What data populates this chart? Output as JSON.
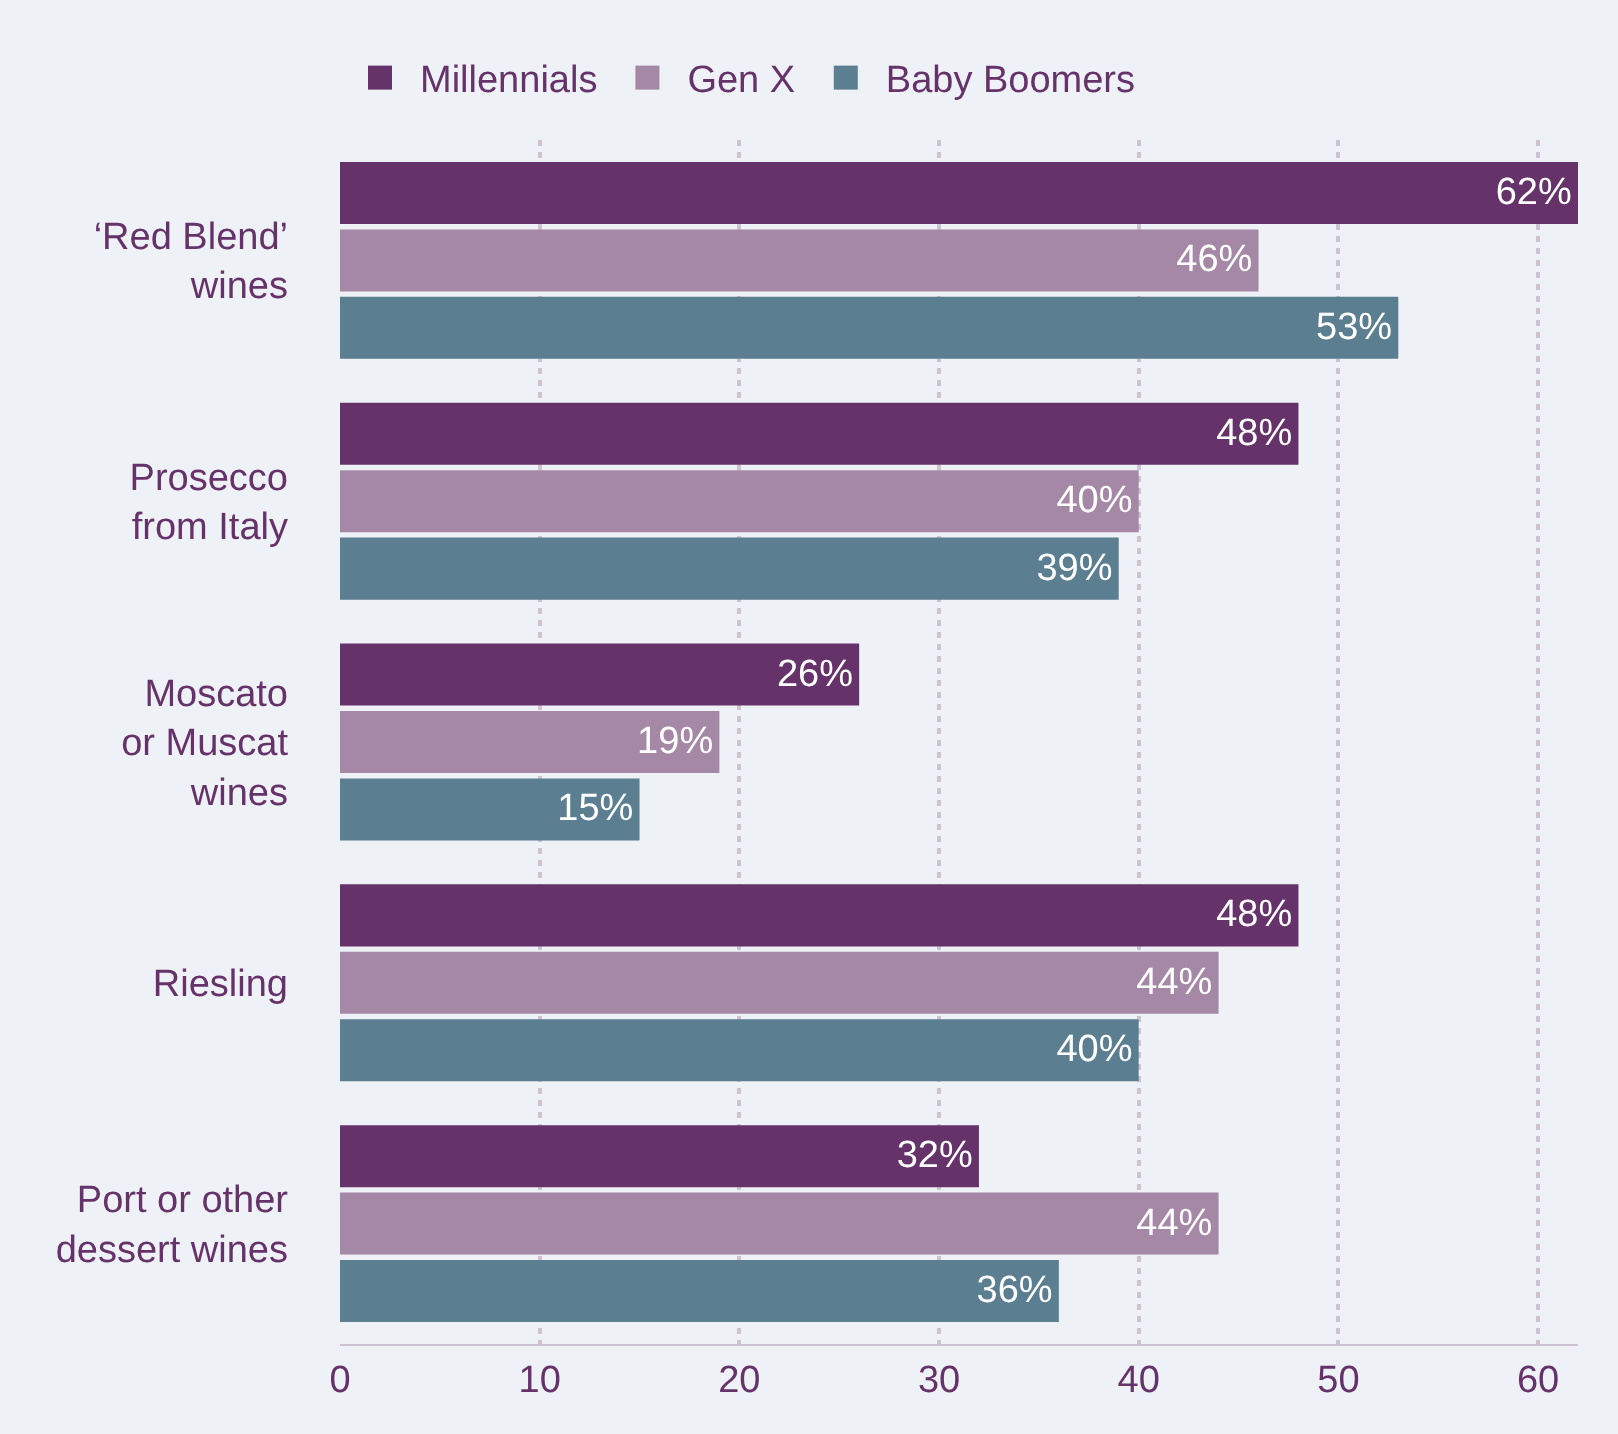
{
  "chart_data": {
    "type": "bar",
    "orientation": "horizontal",
    "categories": [
      "‘Red Blend’\nwines",
      "Prosecco\nfrom Italy",
      "Moscato\nor Muscat\nwines",
      "Riesling",
      "Port or other\ndessert wines"
    ],
    "series": [
      {
        "name": "Millennials",
        "color": "#66326a",
        "values": [
          62,
          48,
          26,
          48,
          32
        ],
        "value_labels": [
          "62%",
          "48%",
          "26%",
          "48%",
          "32%"
        ]
      },
      {
        "name": "Gen X",
        "color": "#a588a6",
        "values": [
          46,
          40,
          19,
          44,
          44
        ],
        "value_labels": [
          "46%",
          "40%",
          "19%",
          "44%",
          "44%"
        ]
      },
      {
        "name": "Baby Boomers",
        "color": "#5b7f91",
        "values": [
          53,
          39,
          15,
          40,
          36
        ],
        "value_labels": [
          "53%",
          "39%",
          "15%",
          "40%",
          "36%"
        ]
      }
    ],
    "xlim": [
      0,
      62
    ],
    "xticks": [
      0,
      10,
      20,
      30,
      40,
      50,
      60
    ],
    "grid": "x",
    "legend": "top left"
  }
}
